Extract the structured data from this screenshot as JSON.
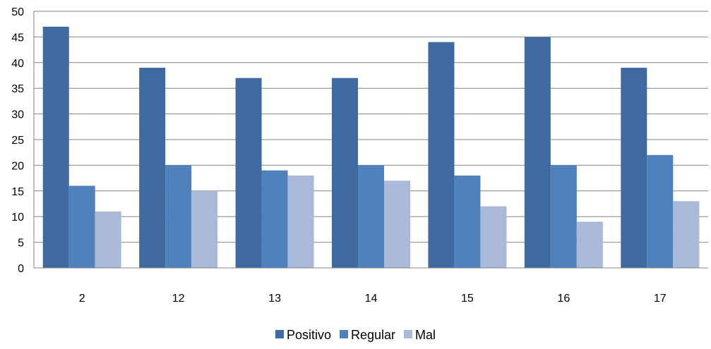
{
  "chart_data": {
    "type": "bar",
    "title": "",
    "xlabel": "",
    "ylabel": "",
    "categories": [
      "2",
      "12",
      "13",
      "14",
      "15",
      "16",
      "17"
    ],
    "series": [
      {
        "name": "Positivo",
        "color": "#3F6AA0",
        "values": [
          47,
          39,
          37,
          37,
          44,
          45,
          39
        ]
      },
      {
        "name": "Regular",
        "color": "#4F81BD",
        "values": [
          16,
          20,
          19,
          20,
          18,
          20,
          22
        ]
      },
      {
        "name": "Mal",
        "color": "#AAB9D8",
        "values": [
          11,
          15,
          18,
          17,
          12,
          9,
          13
        ]
      }
    ],
    "ylim": [
      0,
      50
    ],
    "yticks": [
      0,
      5,
      10,
      15,
      20,
      25,
      30,
      35,
      40,
      45,
      50
    ],
    "grid": true,
    "legend": "bottom"
  }
}
